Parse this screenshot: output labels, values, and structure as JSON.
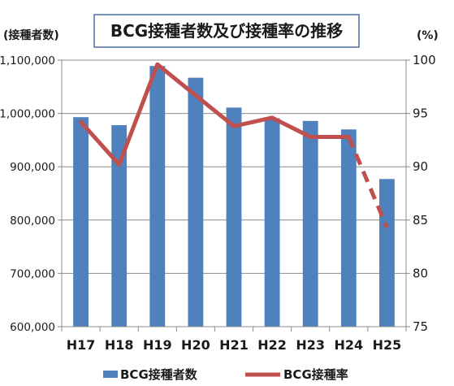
{
  "chart_data": {
    "type": "bar",
    "title": "BCG接種者数及び接種率の推移",
    "categories": [
      "H17",
      "H18",
      "H19",
      "H20",
      "H21",
      "H22",
      "H23",
      "H24",
      "H25"
    ],
    "y_left": {
      "unit_label": "(接種者数)",
      "range": [
        600000,
        1100000
      ],
      "ticks": [
        600000,
        700000,
        800000,
        900000,
        1000000,
        1100000
      ]
    },
    "y_right": {
      "unit_label": "(%)",
      "range": [
        75,
        100
      ],
      "ticks": [
        75,
        80,
        85,
        90,
        95,
        100
      ]
    },
    "grid": true,
    "legend_position": "bottom",
    "series": [
      {
        "name": "BCG接種者数",
        "type": "bar",
        "axis": "left",
        "color": "#4f81bd",
        "values": [
          993000,
          978000,
          1089000,
          1067000,
          1011000,
          991000,
          986000,
          970000,
          877000
        ]
      },
      {
        "name": "BCG接種率",
        "type": "line",
        "axis": "right",
        "color": "#c0504d",
        "values": [
          94.2,
          90.2,
          99.6,
          96.7,
          93.8,
          94.6,
          92.8,
          92.8,
          84.3
        ],
        "dashed_from_index": 7
      }
    ]
  }
}
